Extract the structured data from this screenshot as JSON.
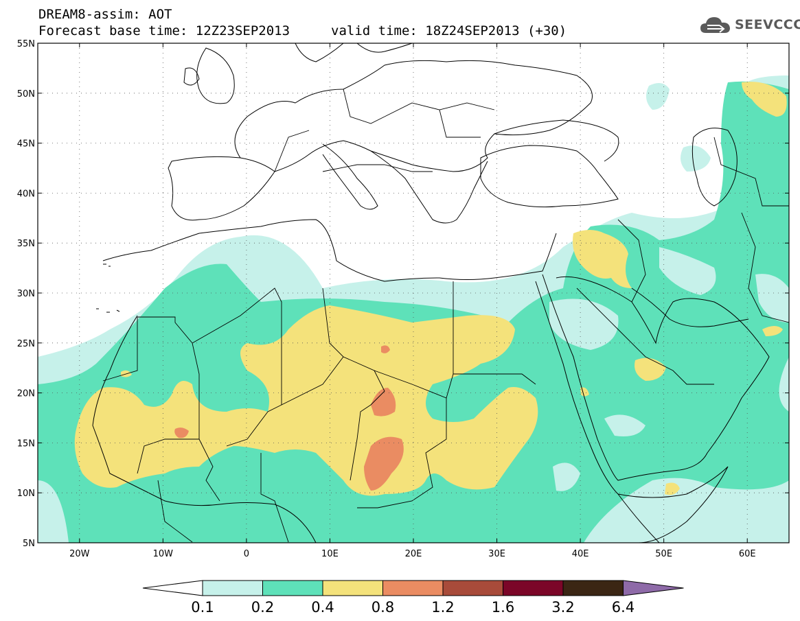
{
  "header": {
    "title_line1": "DREAM8-assim: AOT",
    "title_line2": "Forecast base time: 12Z23SEP2013",
    "valid_time": "valid time: 18Z24SEP2013 (+30)",
    "logo_text": "SEEVCCC",
    "logo_icon": "cloud-icon"
  },
  "map": {
    "lon_range": [
      -25,
      65
    ],
    "lat_range": [
      5,
      55
    ],
    "grid": "dotted",
    "lat_labels": [
      "5N",
      "10N",
      "15N",
      "20N",
      "25N",
      "30N",
      "35N",
      "40N",
      "45N",
      "50N",
      "55N"
    ],
    "lat_values": [
      5,
      10,
      15,
      20,
      25,
      30,
      35,
      40,
      45,
      50,
      55
    ],
    "lon_labels": [
      "20W",
      "10W",
      "0",
      "10E",
      "20E",
      "30E",
      "40E",
      "50E",
      "60E"
    ],
    "lon_values": [
      -20,
      -10,
      0,
      10,
      20,
      30,
      40,
      50,
      60
    ]
  },
  "colorbar": {
    "labels": [
      "0.1",
      "0.2",
      "0.4",
      "0.8",
      "1.2",
      "1.6",
      "3.2",
      "6.4"
    ],
    "colors": [
      "#c6f1ea",
      "#5ee1b9",
      "#f4e27b",
      "#ea8c62",
      "#a84b3a",
      "#7b0628",
      "#3b2614",
      "#8e6aa8"
    ],
    "low_arrow_color": "#ffffff"
  }
}
